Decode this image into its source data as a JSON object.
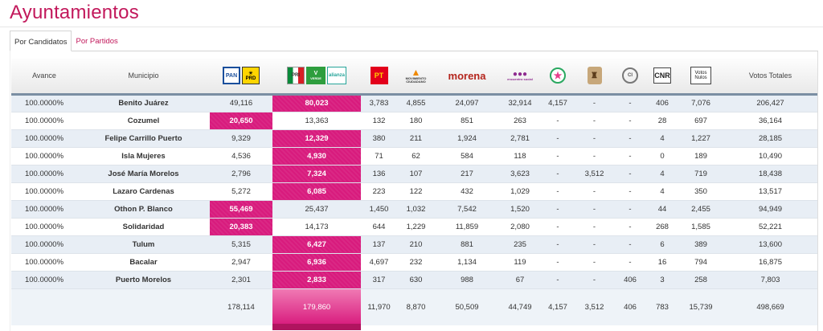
{
  "page": {
    "title": "Ayuntamientos"
  },
  "tabs": [
    {
      "label": "Por Candidatos",
      "active": true
    },
    {
      "label": "Por Partidos",
      "active": false
    }
  ],
  "colors": {
    "accent": "#c2185b",
    "winner": "#d81b7d",
    "header_rule": "#7a8ea3",
    "row_alt": "#e8eef5"
  },
  "headers": {
    "avance": "Avance",
    "municipio": "Municipio",
    "pan_prd": {
      "icons": [
        "pan-logo-icon",
        "prd-logo-icon"
      ],
      "pan_text": "PAN",
      "prd_text": "PRD"
    },
    "pri_verde_na": {
      "icons": [
        "pri-logo-icon",
        "pvem-logo-icon",
        "nueva-alianza-logo-icon"
      ],
      "pri_text": "PRI",
      "verde_text": "VERDE",
      "na_text": "alianza"
    },
    "pt": {
      "icon": "pt-logo-icon",
      "text": "PT"
    },
    "mc": {
      "icon": "movimiento-ciudadano-logo-icon",
      "text": "MOVIMIENTO CIUDADANO"
    },
    "morena": {
      "icon": "morena-logo-icon",
      "text": "morena"
    },
    "encuentro": {
      "icon": "encuentro-social-logo-icon",
      "text": "encuentro social"
    },
    "col5": {
      "icon": "independent-star-logo-icon"
    },
    "col6": {
      "icon": "independent-seal-logo-icon"
    },
    "col7": {
      "icon": "independent-ci-logo-icon",
      "text": "CI"
    },
    "cnr": "CNR",
    "nulos": "Votos Nulos",
    "totales": "Votos Totales"
  },
  "rows": [
    {
      "avance": "100.0000%",
      "municipio": "Benito Juárez",
      "pan_prd": "49,116",
      "pri_verde_na": "80,023",
      "pt": "3,783",
      "mc": "4,855",
      "morena": "24,097",
      "encuentro": "32,914",
      "col5": "4,157",
      "col6": "-",
      "col7": "-",
      "cnr": "406",
      "nulos": "7,076",
      "total": "206,427",
      "winner": "pri_verde_na"
    },
    {
      "avance": "100.0000%",
      "municipio": "Cozumel",
      "pan_prd": "20,650",
      "pri_verde_na": "13,363",
      "pt": "132",
      "mc": "180",
      "morena": "851",
      "encuentro": "263",
      "col5": "-",
      "col6": "-",
      "col7": "-",
      "cnr": "28",
      "nulos": "697",
      "total": "36,164",
      "winner": "pan_prd"
    },
    {
      "avance": "100.0000%",
      "municipio": "Felipe Carrillo Puerto",
      "pan_prd": "9,329",
      "pri_verde_na": "12,329",
      "pt": "380",
      "mc": "211",
      "morena": "1,924",
      "encuentro": "2,781",
      "col5": "-",
      "col6": "-",
      "col7": "-",
      "cnr": "4",
      "nulos": "1,227",
      "total": "28,185",
      "winner": "pri_verde_na"
    },
    {
      "avance": "100.0000%",
      "municipio": "Isla Mujeres",
      "pan_prd": "4,536",
      "pri_verde_na": "4,930",
      "pt": "71",
      "mc": "62",
      "morena": "584",
      "encuentro": "118",
      "col5": "-",
      "col6": "-",
      "col7": "-",
      "cnr": "0",
      "nulos": "189",
      "total": "10,490",
      "winner": "pri_verde_na"
    },
    {
      "avance": "100.0000%",
      "municipio": "José María Morelos",
      "pan_prd": "2,796",
      "pri_verde_na": "7,324",
      "pt": "136",
      "mc": "107",
      "morena": "217",
      "encuentro": "3,623",
      "col5": "-",
      "col6": "3,512",
      "col7": "-",
      "cnr": "4",
      "nulos": "719",
      "total": "18,438",
      "winner": "pri_verde_na"
    },
    {
      "avance": "100.0000%",
      "municipio": "Lazaro Cardenas",
      "pan_prd": "5,272",
      "pri_verde_na": "6,085",
      "pt": "223",
      "mc": "122",
      "morena": "432",
      "encuentro": "1,029",
      "col5": "-",
      "col6": "-",
      "col7": "-",
      "cnr": "4",
      "nulos": "350",
      "total": "13,517",
      "winner": "pri_verde_na"
    },
    {
      "avance": "100.0000%",
      "municipio": "Othon P. Blanco",
      "pan_prd": "55,469",
      "pri_verde_na": "25,437",
      "pt": "1,450",
      "mc": "1,032",
      "morena": "7,542",
      "encuentro": "1,520",
      "col5": "-",
      "col6": "-",
      "col7": "-",
      "cnr": "44",
      "nulos": "2,455",
      "total": "94,949",
      "winner": "pan_prd"
    },
    {
      "avance": "100.0000%",
      "municipio": "Solidaridad",
      "pan_prd": "20,383",
      "pri_verde_na": "14,173",
      "pt": "644",
      "mc": "1,229",
      "morena": "11,859",
      "encuentro": "2,080",
      "col5": "-",
      "col6": "-",
      "col7": "-",
      "cnr": "268",
      "nulos": "1,585",
      "total": "52,221",
      "winner": "pan_prd"
    },
    {
      "avance": "100.0000%",
      "municipio": "Tulum",
      "pan_prd": "5,315",
      "pri_verde_na": "6,427",
      "pt": "137",
      "mc": "210",
      "morena": "881",
      "encuentro": "235",
      "col5": "-",
      "col6": "-",
      "col7": "-",
      "cnr": "6",
      "nulos": "389",
      "total": "13,600",
      "winner": "pri_verde_na"
    },
    {
      "avance": "100.0000%",
      "municipio": "Bacalar",
      "pan_prd": "2,947",
      "pri_verde_na": "6,936",
      "pt": "4,697",
      "mc": "232",
      "morena": "1,134",
      "encuentro": "119",
      "col5": "-",
      "col6": "-",
      "col7": "-",
      "cnr": "16",
      "nulos": "794",
      "total": "16,875",
      "winner": "pri_verde_na"
    },
    {
      "avance": "100.0000%",
      "municipio": "Puerto Morelos",
      "pan_prd": "2,301",
      "pri_verde_na": "2,833",
      "pt": "317",
      "mc": "630",
      "morena": "988",
      "encuentro": "67",
      "col5": "-",
      "col6": "-",
      "col7": "406",
      "cnr": "3",
      "nulos": "258",
      "total": "7,803",
      "winner": "pri_verde_na"
    }
  ],
  "totals": {
    "pan_prd": "178,114",
    "pri_verde_na": "179,860",
    "pt": "11,970",
    "mc": "8,870",
    "morena": "50,509",
    "encuentro": "44,749",
    "col5": "4,157",
    "col6": "3,512",
    "col7": "406",
    "cnr": "783",
    "nulos": "15,739",
    "total": "498,669"
  }
}
